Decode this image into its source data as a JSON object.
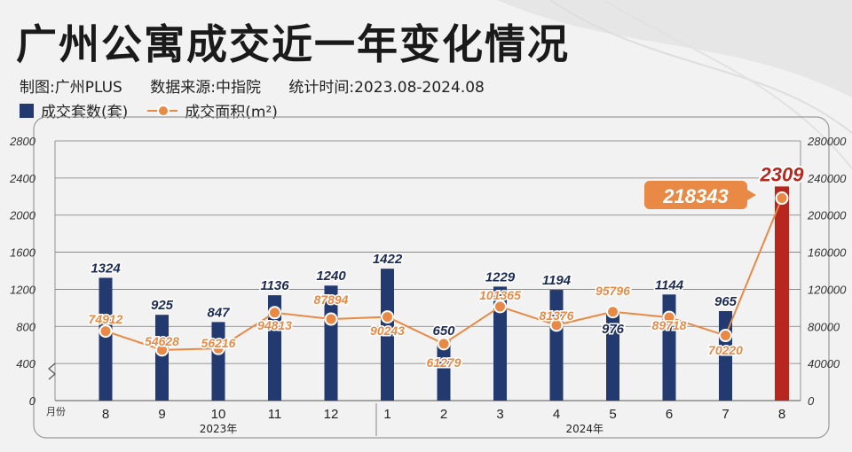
{
  "title": "广州公寓成交近一年变化情况",
  "meta": {
    "source1": "制图:广州PLUS",
    "source2": "数据来源:中指院",
    "period": "统计时间:2023.08-2024.08"
  },
  "legend": {
    "bars": "成交套数(套)",
    "line": "成交面积(m²)"
  },
  "colors": {
    "bar": "#223a70",
    "bar_highlight": "#b8271e",
    "line": "#e88a45",
    "label_highlight_bg": "#e88a45"
  },
  "chart_data": {
    "type": "bar",
    "x_axis_label": "月份",
    "categories": [
      "8",
      "9",
      "10",
      "11",
      "12",
      "1",
      "2",
      "3",
      "4",
      "5",
      "6",
      "7",
      "8"
    ],
    "year_groups": [
      {
        "label": "2023年",
        "count": 5
      },
      {
        "label": "2024年",
        "count": 8
      }
    ],
    "series": [
      {
        "name": "成交套数(套)",
        "type": "bar",
        "axis": "left",
        "values": [
          1324,
          925,
          847,
          1136,
          1240,
          1422,
          650,
          1229,
          1194,
          976,
          1144,
          965,
          2309
        ]
      },
      {
        "name": "成交面积(m²)",
        "type": "line",
        "axis": "right",
        "values": [
          74912,
          54628,
          56216,
          94813,
          87894,
          90243,
          61279,
          101365,
          81376,
          95796,
          89718,
          70220,
          218343
        ]
      }
    ],
    "left_axis": {
      "ticks": [
        0,
        400,
        800,
        1200,
        1600,
        2000,
        2400,
        2800
      ],
      "range": [
        0,
        2800
      ]
    },
    "right_axis": {
      "ticks": [
        0,
        40000,
        80000,
        120000,
        160000,
        200000,
        240000,
        280000
      ],
      "range": [
        0,
        280000
      ]
    },
    "grid": true,
    "axis_break": true,
    "highlight_index": 12
  }
}
